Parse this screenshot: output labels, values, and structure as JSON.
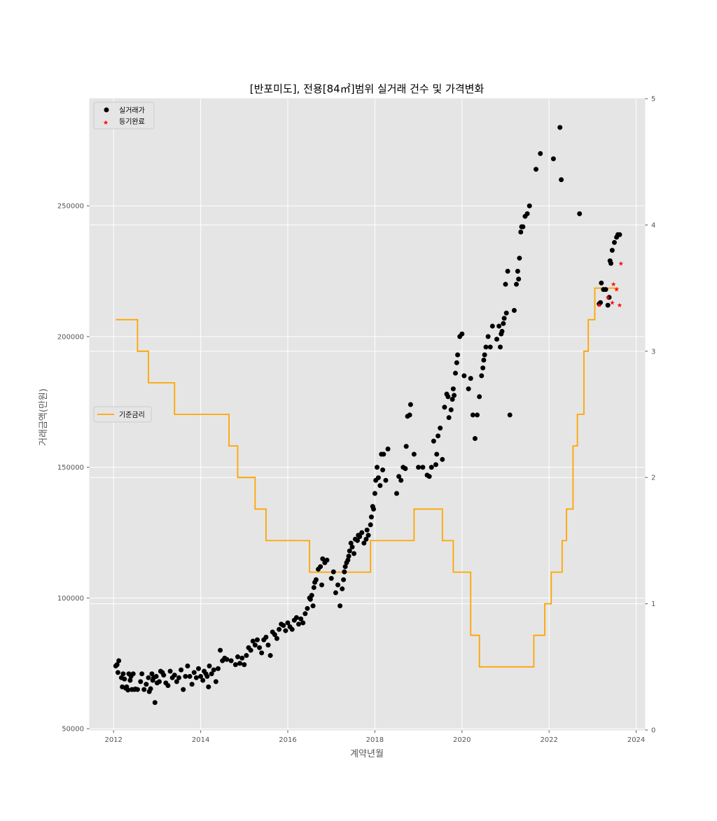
{
  "chart_data": {
    "type": "scatter",
    "title": "[반포미도], 전용[84㎡]범위 실거래 건수 및 가격변화",
    "xlabel": "계약년월",
    "ylabel": "거래금액(만원)",
    "xlim": [
      2011.45,
      2024.2
    ],
    "ylim": [
      49500,
      291000
    ],
    "y2lim": [
      0,
      5
    ],
    "x_ticks": [
      2012,
      2014,
      2016,
      2018,
      2020,
      2022,
      2024
    ],
    "y_ticks": [
      50000,
      100000,
      150000,
      200000,
      250000
    ],
    "y2_ticks": [
      0,
      1,
      2,
      3,
      4,
      5
    ],
    "grid": true,
    "legend_top": {
      "position": "top-left",
      "entries": [
        "실거래가",
        "등기완료"
      ]
    },
    "legend_mid": {
      "position": "center-left",
      "entries": [
        "기준금리"
      ]
    },
    "colors": {
      "price": "#000000",
      "registered": "#ff0000",
      "rate": "#ffa500",
      "background": "#e5e5e5"
    },
    "series": [
      {
        "name": "실거래가",
        "kind": "scatter",
        "points": [
          [
            2012.05,
            74000
          ],
          [
            2012.08,
            74500
          ],
          [
            2012.1,
            71500
          ],
          [
            2012.12,
            76000
          ],
          [
            2012.18,
            69500
          ],
          [
            2012.2,
            66000
          ],
          [
            2012.22,
            71000
          ],
          [
            2012.25,
            69000
          ],
          [
            2012.28,
            65500
          ],
          [
            2012.3,
            66000
          ],
          [
            2012.33,
            64800
          ],
          [
            2012.35,
            71000
          ],
          [
            2012.38,
            68500
          ],
          [
            2012.4,
            70000
          ],
          [
            2012.42,
            65000
          ],
          [
            2012.45,
            71000
          ],
          [
            2012.48,
            65000
          ],
          [
            2012.5,
            65200
          ],
          [
            2012.55,
            65000
          ],
          [
            2012.62,
            68000
          ],
          [
            2012.65,
            71000
          ],
          [
            2012.7,
            65000
          ],
          [
            2012.75,
            67000
          ],
          [
            2012.8,
            69500
          ],
          [
            2012.82,
            64200
          ],
          [
            2012.85,
            65300
          ],
          [
            2012.88,
            71000
          ],
          [
            2012.9,
            68500
          ],
          [
            2012.92,
            69500
          ],
          [
            2012.95,
            60000
          ],
          [
            2012.98,
            70000
          ],
          [
            2013.0,
            67500
          ],
          [
            2013.05,
            68000
          ],
          [
            2013.08,
            72000
          ],
          [
            2013.12,
            71500
          ],
          [
            2013.15,
            70500
          ],
          [
            2013.2,
            67500
          ],
          [
            2013.25,
            66500
          ],
          [
            2013.3,
            72000
          ],
          [
            2013.35,
            69500
          ],
          [
            2013.4,
            70500
          ],
          [
            2013.45,
            68000
          ],
          [
            2013.5,
            69500
          ],
          [
            2013.55,
            72500
          ],
          [
            2013.6,
            65000
          ],
          [
            2013.65,
            70000
          ],
          [
            2013.7,
            74000
          ],
          [
            2013.75,
            70000
          ],
          [
            2013.8,
            67000
          ],
          [
            2013.85,
            71500
          ],
          [
            2013.9,
            69500
          ],
          [
            2013.95,
            73000
          ],
          [
            2014.0,
            70000
          ],
          [
            2014.05,
            68500
          ],
          [
            2014.08,
            72000
          ],
          [
            2014.12,
            71000
          ],
          [
            2014.15,
            70000
          ],
          [
            2014.18,
            66000
          ],
          [
            2014.2,
            74000
          ],
          [
            2014.25,
            71000
          ],
          [
            2014.3,
            72500
          ],
          [
            2014.35,
            68000
          ],
          [
            2014.4,
            73000
          ],
          [
            2014.45,
            80000
          ],
          [
            2014.5,
            76000
          ],
          [
            2014.55,
            77000
          ],
          [
            2014.6,
            76500
          ],
          [
            2014.7,
            76000
          ],
          [
            2014.8,
            74500
          ],
          [
            2014.85,
            77500
          ],
          [
            2014.9,
            75000
          ],
          [
            2014.95,
            77000
          ],
          [
            2015.0,
            74500
          ],
          [
            2015.05,
            78000
          ],
          [
            2015.1,
            81000
          ],
          [
            2015.15,
            80000
          ],
          [
            2015.2,
            83500
          ],
          [
            2015.25,
            82000
          ],
          [
            2015.3,
            84000
          ],
          [
            2015.35,
            81000
          ],
          [
            2015.4,
            79000
          ],
          [
            2015.45,
            84000
          ],
          [
            2015.5,
            85000
          ],
          [
            2015.55,
            82000
          ],
          [
            2015.6,
            78000
          ],
          [
            2015.65,
            87000
          ],
          [
            2015.7,
            86000
          ],
          [
            2015.75,
            84500
          ],
          [
            2015.8,
            88000
          ],
          [
            2015.85,
            90000
          ],
          [
            2015.9,
            89500
          ],
          [
            2015.95,
            87500
          ],
          [
            2016.0,
            90500
          ],
          [
            2016.05,
            89000
          ],
          [
            2016.1,
            88000
          ],
          [
            2016.15,
            91500
          ],
          [
            2016.2,
            92500
          ],
          [
            2016.25,
            90000
          ],
          [
            2016.3,
            92000
          ],
          [
            2016.35,
            90500
          ],
          [
            2016.4,
            94000
          ],
          [
            2016.45,
            96000
          ],
          [
            2016.5,
            100000
          ],
          [
            2016.52,
            99500
          ],
          [
            2016.55,
            101000
          ],
          [
            2016.58,
            97000
          ],
          [
            2016.6,
            104000
          ],
          [
            2016.62,
            106000
          ],
          [
            2016.65,
            107000
          ],
          [
            2016.7,
            111000
          ],
          [
            2016.75,
            112000
          ],
          [
            2016.78,
            105000
          ],
          [
            2016.8,
            115000
          ],
          [
            2016.85,
            113500
          ],
          [
            2016.9,
            114500
          ],
          [
            2017.0,
            107500
          ],
          [
            2017.05,
            110000
          ],
          [
            2017.1,
            102000
          ],
          [
            2017.15,
            105000
          ],
          [
            2017.2,
            97000
          ],
          [
            2017.25,
            103500
          ],
          [
            2017.28,
            107000
          ],
          [
            2017.3,
            110000
          ],
          [
            2017.32,
            112000
          ],
          [
            2017.35,
            113500
          ],
          [
            2017.38,
            114500
          ],
          [
            2017.4,
            116000
          ],
          [
            2017.42,
            118000
          ],
          [
            2017.45,
            121000
          ],
          [
            2017.48,
            119500
          ],
          [
            2017.52,
            117000
          ],
          [
            2017.55,
            122500
          ],
          [
            2017.6,
            122000
          ],
          [
            2017.62,
            124000
          ],
          [
            2017.65,
            123500
          ],
          [
            2017.7,
            125000
          ],
          [
            2017.75,
            121000
          ],
          [
            2017.8,
            122500
          ],
          [
            2017.82,
            126000
          ],
          [
            2017.85,
            124000
          ],
          [
            2017.9,
            128000
          ],
          [
            2017.92,
            131000
          ],
          [
            2017.95,
            135000
          ],
          [
            2017.97,
            134000
          ],
          [
            2018.0,
            140000
          ],
          [
            2018.02,
            145000
          ],
          [
            2018.05,
            150000
          ],
          [
            2018.08,
            146000
          ],
          [
            2018.12,
            143000
          ],
          [
            2018.15,
            155000
          ],
          [
            2018.18,
            149000
          ],
          [
            2018.2,
            155000
          ],
          [
            2018.25,
            145000
          ],
          [
            2018.3,
            157000
          ],
          [
            2018.5,
            140000
          ],
          [
            2018.55,
            146500
          ],
          [
            2018.6,
            145000
          ],
          [
            2018.65,
            150000
          ],
          [
            2018.7,
            149500
          ],
          [
            2018.72,
            158000
          ],
          [
            2018.75,
            169500
          ],
          [
            2018.8,
            170000
          ],
          [
            2018.82,
            174000
          ],
          [
            2018.9,
            155000
          ],
          [
            2019.0,
            150000
          ],
          [
            2019.1,
            150000
          ],
          [
            2019.2,
            147000
          ],
          [
            2019.25,
            146500
          ],
          [
            2019.3,
            150000
          ],
          [
            2019.35,
            160000
          ],
          [
            2019.4,
            151000
          ],
          [
            2019.42,
            155000
          ],
          [
            2019.45,
            162000
          ],
          [
            2019.5,
            165000
          ],
          [
            2019.55,
            153000
          ],
          [
            2019.6,
            173000
          ],
          [
            2019.65,
            178000
          ],
          [
            2019.68,
            177000
          ],
          [
            2019.7,
            169000
          ],
          [
            2019.75,
            172000
          ],
          [
            2019.78,
            176000
          ],
          [
            2019.8,
            180000
          ],
          [
            2019.82,
            177500
          ],
          [
            2019.85,
            186000
          ],
          [
            2019.88,
            190000
          ],
          [
            2019.9,
            193000
          ],
          [
            2019.95,
            200000
          ],
          [
            2020.0,
            201000
          ],
          [
            2020.05,
            185000
          ],
          [
            2020.15,
            180000
          ],
          [
            2020.2,
            184000
          ],
          [
            2020.25,
            170000
          ],
          [
            2020.3,
            161000
          ],
          [
            2020.35,
            170000
          ],
          [
            2020.4,
            177000
          ],
          [
            2020.45,
            185000
          ],
          [
            2020.48,
            188000
          ],
          [
            2020.5,
            191000
          ],
          [
            2020.52,
            193000
          ],
          [
            2020.55,
            196000
          ],
          [
            2020.6,
            200000
          ],
          [
            2020.65,
            196000
          ],
          [
            2020.7,
            204000
          ],
          [
            2020.8,
            199000
          ],
          [
            2020.85,
            204000
          ],
          [
            2020.88,
            196000
          ],
          [
            2020.9,
            201000
          ],
          [
            2020.92,
            202000
          ],
          [
            2020.95,
            205000
          ],
          [
            2020.97,
            207000
          ],
          [
            2021.0,
            220000
          ],
          [
            2021.02,
            209000
          ],
          [
            2021.05,
            225000
          ],
          [
            2021.1,
            170000
          ],
          [
            2021.2,
            210000
          ],
          [
            2021.25,
            220000
          ],
          [
            2021.28,
            225000
          ],
          [
            2021.3,
            222000
          ],
          [
            2021.32,
            230000
          ],
          [
            2021.35,
            240000
          ],
          [
            2021.37,
            242000
          ],
          [
            2021.4,
            242000
          ],
          [
            2021.45,
            246000
          ],
          [
            2021.5,
            247000
          ],
          [
            2021.55,
            250000
          ],
          [
            2021.7,
            264000
          ],
          [
            2021.8,
            270000
          ],
          [
            2022.1,
            268000
          ],
          [
            2022.25,
            280000
          ],
          [
            2022.28,
            260000
          ],
          [
            2022.7,
            247000
          ],
          [
            2023.15,
            212500
          ],
          [
            2023.18,
            213000
          ],
          [
            2023.2,
            220500
          ],
          [
            2023.25,
            218000
          ],
          [
            2023.3,
            218000
          ],
          [
            2023.35,
            212000
          ],
          [
            2023.38,
            215000
          ],
          [
            2023.4,
            229000
          ],
          [
            2023.42,
            228000
          ],
          [
            2023.45,
            233000
          ],
          [
            2023.5,
            236000
          ],
          [
            2023.55,
            238000
          ],
          [
            2023.58,
            239000
          ],
          [
            2023.62,
            239000
          ]
        ]
      },
      {
        "name": "등기완료",
        "kind": "scatter",
        "points": [
          [
            2023.15,
            212000
          ],
          [
            2023.35,
            215000
          ],
          [
            2023.45,
            213000
          ],
          [
            2023.48,
            220000
          ],
          [
            2023.55,
            218000
          ],
          [
            2023.62,
            212000
          ],
          [
            2023.65,
            228000
          ]
        ]
      },
      {
        "name": "기준금리",
        "kind": "step",
        "axis": "right",
        "points": [
          [
            2012.05,
            3.25
          ],
          [
            2012.55,
            3.0
          ],
          [
            2012.8,
            2.75
          ],
          [
            2013.4,
            2.5
          ],
          [
            2014.65,
            2.25
          ],
          [
            2014.85,
            2.0
          ],
          [
            2015.25,
            1.75
          ],
          [
            2015.5,
            1.5
          ],
          [
            2016.5,
            1.25
          ],
          [
            2017.9,
            1.5
          ],
          [
            2018.9,
            1.75
          ],
          [
            2019.55,
            1.5
          ],
          [
            2019.8,
            1.25
          ],
          [
            2020.2,
            0.75
          ],
          [
            2020.4,
            0.5
          ],
          [
            2021.65,
            0.75
          ],
          [
            2021.9,
            1.0
          ],
          [
            2022.05,
            1.25
          ],
          [
            2022.3,
            1.5
          ],
          [
            2022.4,
            1.75
          ],
          [
            2022.55,
            2.25
          ],
          [
            2022.65,
            2.5
          ],
          [
            2022.8,
            3.0
          ],
          [
            2022.9,
            3.25
          ],
          [
            2023.05,
            3.5
          ],
          [
            2023.6,
            3.5
          ]
        ]
      }
    ]
  }
}
